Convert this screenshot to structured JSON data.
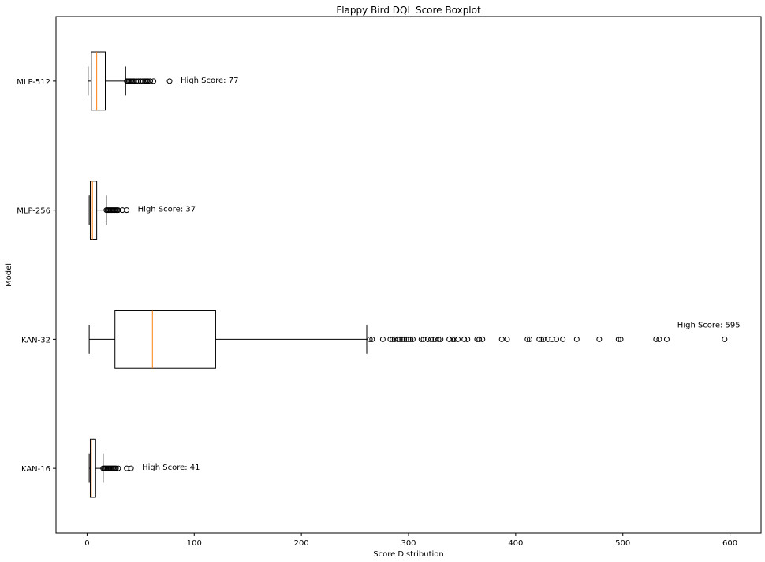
{
  "chart_data": {
    "type": "box",
    "orientation": "horizontal",
    "title": "Flappy Bird DQL Score Boxplot",
    "xlabel": "Score Distribution",
    "ylabel": "Model",
    "xlim": [
      -29,
      629
    ],
    "xticks": [
      0,
      100,
      200,
      300,
      400,
      500,
      600
    ],
    "categories": [
      "KAN-16",
      "KAN-32",
      "MLP-256",
      "MLP-512"
    ],
    "colors": {
      "box": "#000000",
      "median": "#ff7f0e",
      "axis": "#000000"
    },
    "series": [
      {
        "category": "KAN-16",
        "whisker_low": 2,
        "q1": 3,
        "median": 4,
        "q3": 8,
        "whisker_high": 15,
        "outliers": [
          15,
          16,
          17,
          18,
          19,
          20,
          21,
          22,
          23,
          24,
          25,
          26,
          27,
          29,
          37,
          41
        ],
        "annotation": "High Score: 41"
      },
      {
        "category": "KAN-32",
        "whisker_low": 2,
        "q1": 26,
        "median": 61,
        "q3": 120,
        "whisker_high": 261,
        "outliers": [
          264,
          266,
          276,
          283,
          285,
          287,
          290,
          292,
          294,
          296,
          298,
          300,
          302,
          304,
          312,
          314,
          318,
          321,
          323,
          325,
          328,
          330,
          338,
          341,
          343,
          346,
          352,
          355,
          364,
          366,
          369,
          387,
          392,
          411,
          413,
          422,
          424,
          426,
          430,
          434,
          438,
          444,
          457,
          478,
          496,
          498,
          531,
          534,
          541,
          595
        ],
        "annotation": "High Score: 595"
      },
      {
        "category": "MLP-256",
        "whisker_low": 2,
        "q1": 3,
        "median": 5,
        "q3": 9,
        "whisker_high": 18,
        "outliers": [
          18,
          19,
          20,
          21,
          22,
          23,
          24,
          25,
          26,
          27,
          28,
          29,
          33,
          37
        ],
        "annotation": "High Score: 37"
      },
      {
        "category": "MLP-512",
        "whisker_low": 1,
        "q1": 4,
        "median": 9,
        "q3": 17,
        "whisker_high": 36,
        "outliers": [
          37,
          38,
          39,
          40,
          41,
          42,
          43,
          44,
          46,
          48,
          50,
          52,
          54,
          55,
          56,
          57,
          59,
          62,
          77
        ],
        "annotation": "High Score: 77"
      }
    ]
  }
}
